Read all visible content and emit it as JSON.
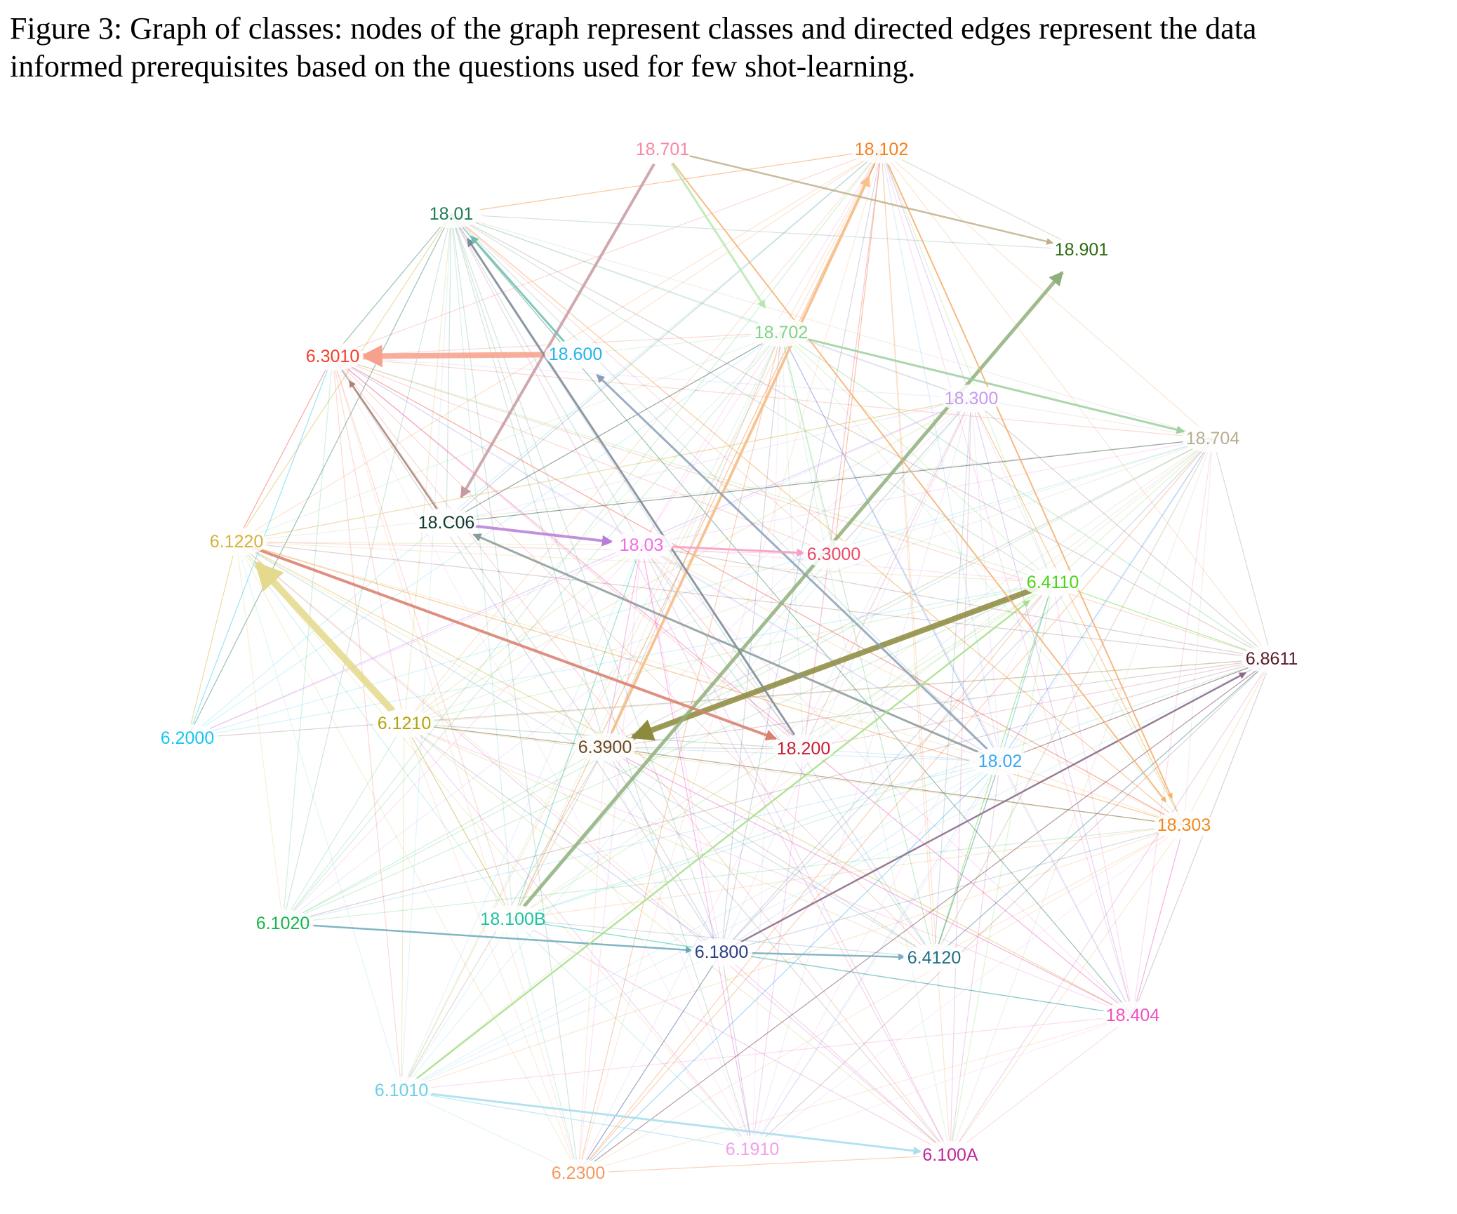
{
  "caption": {
    "line1": "Figure 3: Graph of classes: nodes of the graph represent classes and directed edges represent the data",
    "line2": "informed prerequisites based on the questions used for few shot-learning."
  },
  "nodes": [
    {
      "id": "18.701",
      "label": "18.701",
      "color": "#f48aa2"
    },
    {
      "id": "18.102",
      "label": "18.102",
      "color": "#f77f1a"
    },
    {
      "id": "18.01",
      "label": "18.01",
      "color": "#1e7b57"
    },
    {
      "id": "18.901",
      "label": "18.901",
      "color": "#2e6b12"
    },
    {
      "id": "18.702",
      "label": "18.702",
      "color": "#7fd488"
    },
    {
      "id": "6.3010",
      "label": "6.3010",
      "color": "#f2402a"
    },
    {
      "id": "18.600",
      "label": "18.600",
      "color": "#1fb5ef"
    },
    {
      "id": "18.300",
      "label": "18.300",
      "color": "#c59af0"
    },
    {
      "id": "18.704",
      "label": "18.704",
      "color": "#b8ad91"
    },
    {
      "id": "18.C06",
      "label": "18.C06",
      "color": "#0f3b2f"
    },
    {
      "id": "6.1220",
      "label": "6.1220",
      "color": "#d4b23c"
    },
    {
      "id": "18.03",
      "label": "18.03",
      "color": "#f06de0"
    },
    {
      "id": "6.3000",
      "label": "6.3000",
      "color": "#ea4a6a"
    },
    {
      "id": "6.4110",
      "label": "6.4110",
      "color": "#4cd41a"
    },
    {
      "id": "6.8611",
      "label": "6.8611",
      "color": "#5a1a2a"
    },
    {
      "id": "6.2000",
      "label": "6.2000",
      "color": "#17c6f0"
    },
    {
      "id": "6.1210",
      "label": "6.1210",
      "color": "#b3a510"
    },
    {
      "id": "6.3900",
      "label": "6.3900",
      "color": "#6b4a22"
    },
    {
      "id": "18.200",
      "label": "18.200",
      "color": "#c81e34"
    },
    {
      "id": "18.02",
      "label": "18.02",
      "color": "#3aa8f0"
    },
    {
      "id": "18.303",
      "label": "18.303",
      "color": "#f08a1e"
    },
    {
      "id": "6.1020",
      "label": "6.1020",
      "color": "#18b54a"
    },
    {
      "id": "18.100B",
      "label": "18.100B",
      "color": "#1ec2a0"
    },
    {
      "id": "6.1800",
      "label": "6.1800",
      "color": "#2c3f82"
    },
    {
      "id": "6.4120",
      "label": "6.4120",
      "color": "#1f6e86"
    },
    {
      "id": "18.404",
      "label": "18.404",
      "color": "#f04fbf"
    },
    {
      "id": "6.1010",
      "label": "6.1010",
      "color": "#6ccfe6"
    },
    {
      "id": "6.1910",
      "label": "6.1910",
      "color": "#efa0ea"
    },
    {
      "id": "6.100A",
      "label": "6.100A",
      "color": "#c0289c"
    },
    {
      "id": "6.2300",
      "label": "6.2300",
      "color": "#f49a60"
    }
  ],
  "highlighted_edges": [
    {
      "from": "18.600",
      "to": "6.3010",
      "color": "#f7a08c",
      "weight": 8
    },
    {
      "from": "6.4110",
      "to": "6.3900",
      "color": "#8c8a3c",
      "weight": 8
    },
    {
      "from": "6.1210",
      "to": "6.1220",
      "color": "#e4d98c",
      "weight": 10
    },
    {
      "from": "18.100B",
      "to": "18.901",
      "color": "#8fb07a",
      "weight": 5
    },
    {
      "from": "6.3900",
      "to": "18.102",
      "color": "#f9c08a",
      "weight": 4
    },
    {
      "from": "6.1220",
      "to": "18.200",
      "color": "#d8806e",
      "weight": 4
    },
    {
      "from": "18.C06",
      "to": "18.03",
      "color": "#b67ed8",
      "weight": 4
    },
    {
      "from": "18.701",
      "to": "18.C06",
      "color": "#c89aa0",
      "weight": 4
    },
    {
      "from": "18.200",
      "to": "18.01",
      "color": "#7c8a98",
      "weight": 3
    },
    {
      "from": "18.600",
      "to": "18.01",
      "color": "#6fbfb0",
      "weight": 3
    },
    {
      "from": "18.02",
      "to": "18.C06",
      "color": "#8a9a9a",
      "weight": 3
    },
    {
      "from": "6.1800",
      "to": "6.8611",
      "color": "#8a6a8a",
      "weight": 2.5
    },
    {
      "from": "18.02",
      "to": "18.600",
      "color": "#8aa0b8",
      "weight": 3
    },
    {
      "from": "18.701",
      "to": "18.702",
      "color": "#b8e8b0",
      "weight": 3
    },
    {
      "from": "18.03",
      "to": "6.3000",
      "color": "#f4a0c8",
      "weight": 3
    },
    {
      "from": "6.1010",
      "to": "6.100A",
      "color": "#a8e0ee",
      "weight": 3
    },
    {
      "from": "6.1800",
      "to": "6.4120",
      "color": "#7ab0c0",
      "weight": 2.5
    },
    {
      "from": "6.1020",
      "to": "6.1800",
      "color": "#6aa8b8",
      "weight": 2.5
    },
    {
      "from": "6.1010",
      "to": "6.4110",
      "color": "#a8e08a",
      "weight": 2.5
    },
    {
      "from": "18.702",
      "to": "18.704",
      "color": "#9fd0a0",
      "weight": 3
    },
    {
      "from": "18.C06",
      "to": "6.3010",
      "color": "#b08070",
      "weight": 2.5
    },
    {
      "from": "18.701",
      "to": "18.303",
      "color": "#f4b070",
      "weight": 2
    },
    {
      "from": "18.102",
      "to": "18.303",
      "color": "#f4b070",
      "weight": 2
    },
    {
      "from": "18.701",
      "to": "18.901",
      "color": "#c0b08a",
      "weight": 2.5
    }
  ]
}
